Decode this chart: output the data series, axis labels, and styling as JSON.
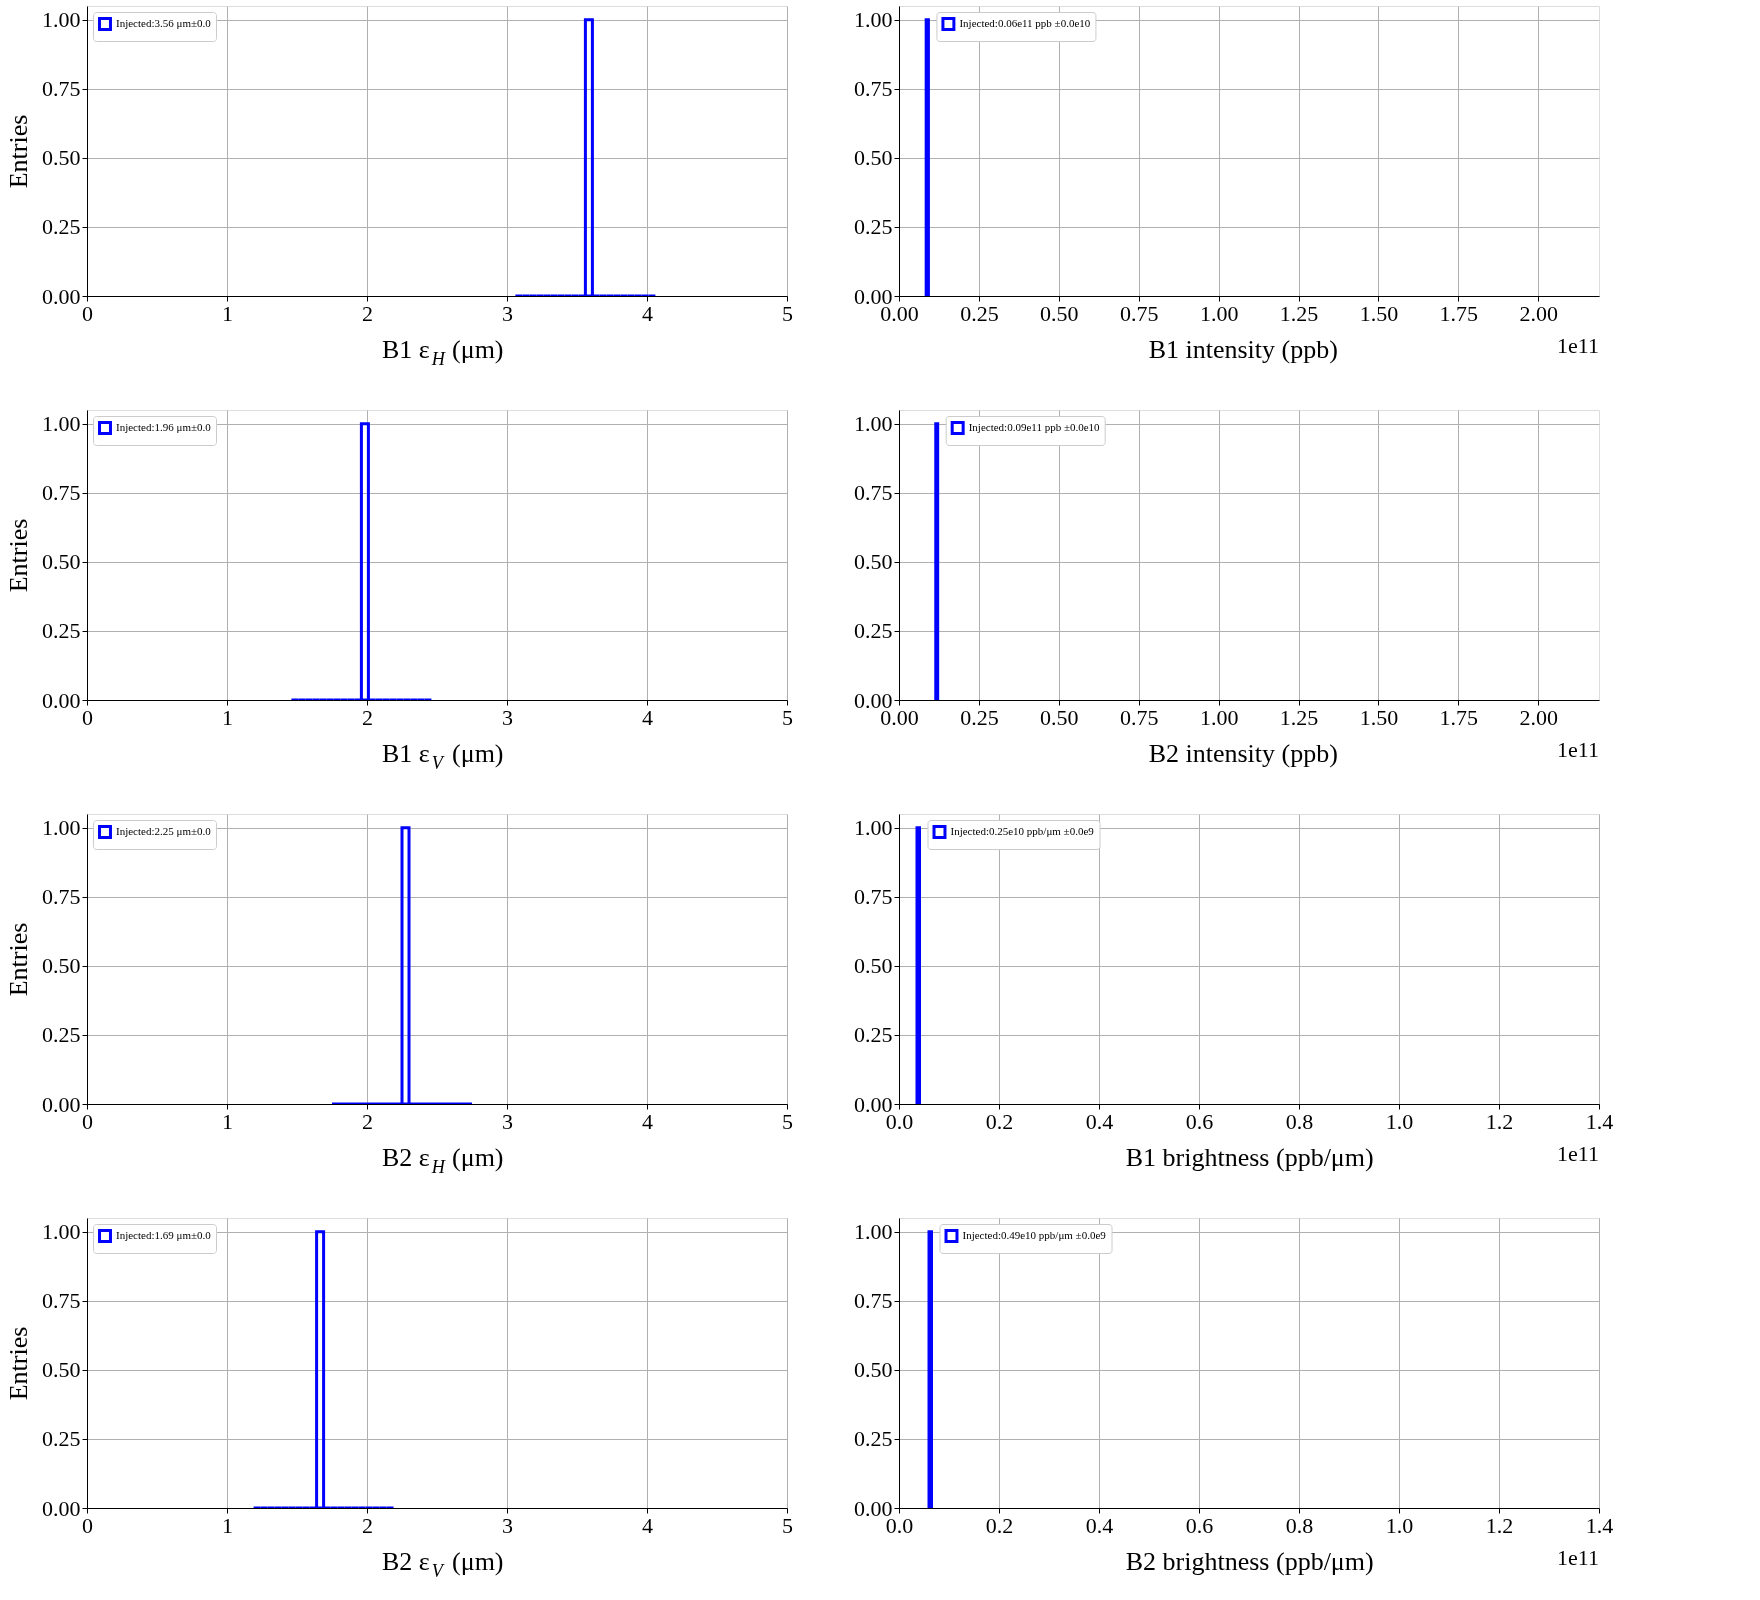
{
  "chart_data": [
    {
      "type": "histogram",
      "xlabel": "B1 ε$_{H}$ (μm)",
      "ylabel": "Entries",
      "bins": [
        3.06,
        3.11,
        3.16,
        3.21,
        3.26,
        3.31,
        3.36,
        3.41,
        3.46,
        3.51,
        3.56,
        3.61,
        3.66,
        3.71,
        3.76,
        3.81,
        3.86,
        3.91,
        3.96,
        4.01,
        4.06
      ],
      "series": [
        {
          "name": "Injected:3.56 μm±0.0",
          "color": "#0000ff",
          "values": [
            0,
            0,
            0,
            0,
            0,
            0,
            0,
            0,
            0,
            0,
            1,
            0,
            0,
            0,
            0,
            0,
            0,
            0,
            0,
            0
          ]
        }
      ],
      "xlim": [
        0,
        5
      ],
      "xticks": [
        0,
        1,
        2,
        3,
        4,
        5
      ],
      "ylim": [
        0,
        1.05
      ],
      "yticks": [
        {
          "value": 0,
          "label": "0.00"
        },
        {
          "value": 0.25,
          "label": "0.25"
        },
        {
          "value": 0.5,
          "label": "0.50"
        },
        {
          "value": 0.75,
          "label": "0.75"
        },
        {
          "value": 1,
          "label": "1.00"
        }
      ],
      "grid": true,
      "legend": "top left"
    },
    {
      "type": "histogram",
      "xlabel": "B1 intensity (ppb)",
      "bins": [
        0.085,
        0.092
      ],
      "series": [
        {
          "name": "Injected:0.06e11 ppb ±0.0e10",
          "color": "#0000ff",
          "values": [
            1
          ]
        }
      ],
      "xlim": [
        0,
        2.19
      ],
      "xticks": [
        {
          "value": 0,
          "label": "0.00"
        },
        {
          "value": 0.25,
          "label": "0.25"
        },
        {
          "value": 0.5,
          "label": "0.50"
        },
        {
          "value": 0.75,
          "label": "0.75"
        },
        {
          "value": 1,
          "label": "1.00"
        },
        {
          "value": 1.25,
          "label": "1.25"
        },
        {
          "value": 1.5,
          "label": "1.50"
        },
        {
          "value": 1.75,
          "label": "1.75"
        },
        {
          "value": 2,
          "label": "2.00"
        }
      ],
      "ylim": [
        0,
        1.05
      ],
      "yticks": [
        {
          "value": 0,
          "label": "0.00"
        },
        {
          "value": 0.25,
          "label": "0.25"
        },
        {
          "value": 0.5,
          "label": "0.50"
        },
        {
          "value": 0.75,
          "label": "0.75"
        },
        {
          "value": 1,
          "label": "1.00"
        }
      ],
      "grid": true,
      "legend": "top left",
      "annotations": [
        "1e11"
      ]
    },
    {
      "type": "histogram",
      "xlabel": "B1 ε$_{V}$ (μm)",
      "ylabel": "Entries",
      "bins": [
        1.46,
        1.51,
        1.56,
        1.61,
        1.66,
        1.71,
        1.76,
        1.81,
        1.86,
        1.91,
        1.96,
        2.01,
        2.06,
        2.11,
        2.16,
        2.21,
        2.26,
        2.31,
        2.36,
        2.41,
        2.46
      ],
      "series": [
        {
          "name": "Injected:1.96 μm±0.0",
          "color": "#0000ff",
          "values": [
            0,
            0,
            0,
            0,
            0,
            0,
            0,
            0,
            0,
            0,
            1,
            0,
            0,
            0,
            0,
            0,
            0,
            0,
            0,
            0
          ]
        }
      ],
      "xlim": [
        0,
        5
      ],
      "xticks": [
        0,
        1,
        2,
        3,
        4,
        5
      ],
      "ylim": [
        0,
        1.05
      ],
      "yticks": [
        {
          "value": 0,
          "label": "0.00"
        },
        {
          "value": 0.25,
          "label": "0.25"
        },
        {
          "value": 0.5,
          "label": "0.50"
        },
        {
          "value": 0.75,
          "label": "0.75"
        },
        {
          "value": 1,
          "label": "1.00"
        }
      ],
      "grid": true,
      "legend": "top left"
    },
    {
      "type": "histogram",
      "xlabel": "B2 intensity (ppb)",
      "bins": [
        0.115,
        0.121
      ],
      "series": [
        {
          "name": "Injected:0.09e11 ppb ±0.0e10",
          "color": "#0000ff",
          "values": [
            1
          ]
        }
      ],
      "xlim": [
        0,
        2.19
      ],
      "xticks": [
        {
          "value": 0,
          "label": "0.00"
        },
        {
          "value": 0.25,
          "label": "0.25"
        },
        {
          "value": 0.5,
          "label": "0.50"
        },
        {
          "value": 0.75,
          "label": "0.75"
        },
        {
          "value": 1,
          "label": "1.00"
        },
        {
          "value": 1.25,
          "label": "1.25"
        },
        {
          "value": 1.5,
          "label": "1.50"
        },
        {
          "value": 1.75,
          "label": "1.75"
        },
        {
          "value": 2,
          "label": "2.00"
        }
      ],
      "ylim": [
        0,
        1.05
      ],
      "yticks": [
        {
          "value": 0,
          "label": "0.00"
        },
        {
          "value": 0.25,
          "label": "0.25"
        },
        {
          "value": 0.5,
          "label": "0.50"
        },
        {
          "value": 0.75,
          "label": "0.75"
        },
        {
          "value": 1,
          "label": "1.00"
        }
      ],
      "grid": true,
      "legend": "top left",
      "annotations": [
        "1e11"
      ]
    },
    {
      "type": "histogram",
      "xlabel": "B2 ε$_{H}$ (μm)",
      "ylabel": "Entries",
      "bins": [
        1.75,
        1.8,
        1.85,
        1.9,
        1.95,
        2.0,
        2.05,
        2.1,
        2.15,
        2.2,
        2.25,
        2.3,
        2.35,
        2.4,
        2.45,
        2.5,
        2.55,
        2.6,
        2.65,
        2.7,
        2.75
      ],
      "series": [
        {
          "name": "Injected:2.25 μm±0.0",
          "color": "#0000ff",
          "values": [
            0,
            0,
            0,
            0,
            0,
            0,
            0,
            0,
            0,
            0,
            1,
            0,
            0,
            0,
            0,
            0,
            0,
            0,
            0,
            0
          ]
        }
      ],
      "xlim": [
        0,
        5
      ],
      "xticks": [
        0,
        1,
        2,
        3,
        4,
        5
      ],
      "ylim": [
        0,
        1.05
      ],
      "yticks": [
        {
          "value": 0,
          "label": "0.00"
        },
        {
          "value": 0.25,
          "label": "0.25"
        },
        {
          "value": 0.5,
          "label": "0.50"
        },
        {
          "value": 0.75,
          "label": "0.75"
        },
        {
          "value": 1,
          "label": "1.00"
        }
      ],
      "grid": true,
      "legend": "top left"
    },
    {
      "type": "histogram",
      "xlabel": "B1 brightness (ppb/μm)",
      "bins": [
        0.036,
        0.041
      ],
      "series": [
        {
          "name": "Injected:0.25e10 ppb/μm ±0.0e9",
          "color": "#0000ff",
          "values": [
            1
          ]
        }
      ],
      "xlim": [
        0,
        1.4
      ],
      "xticks": [
        {
          "value": 0,
          "label": "0.0"
        },
        0.2,
        0.4,
        0.6,
        0.8,
        {
          "value": 1,
          "label": "1.0"
        },
        1.2,
        1.4
      ],
      "ylim": [
        0,
        1.05
      ],
      "yticks": [
        {
          "value": 0,
          "label": "0.00"
        },
        {
          "value": 0.25,
          "label": "0.25"
        },
        {
          "value": 0.5,
          "label": "0.50"
        },
        {
          "value": 0.75,
          "label": "0.75"
        },
        {
          "value": 1,
          "label": "1.00"
        }
      ],
      "grid": true,
      "legend": "top left",
      "annotations": [
        "1e11"
      ]
    },
    {
      "type": "histogram",
      "xlabel": "B2 ε$_{V}$ (μm)",
      "ylabel": "Entries",
      "bins": [
        1.19,
        1.24,
        1.29,
        1.34,
        1.39,
        1.44,
        1.49,
        1.54,
        1.59,
        1.64,
        1.69,
        1.74,
        1.79,
        1.84,
        1.89,
        1.94,
        1.99,
        2.04,
        2.09,
        2.14,
        2.19
      ],
      "series": [
        {
          "name": "Injected:1.69 μm±0.0",
          "color": "#0000ff",
          "values": [
            0,
            0,
            0,
            0,
            0,
            0,
            0,
            0,
            0,
            1,
            0,
            0,
            0,
            0,
            0,
            0,
            0,
            0,
            0,
            0
          ]
        }
      ],
      "xlim": [
        0,
        5
      ],
      "xticks": [
        0,
        1,
        2,
        3,
        4,
        5
      ],
      "ylim": [
        0,
        1.05
      ],
      "yticks": [
        {
          "value": 0,
          "label": "0.00"
        },
        {
          "value": 0.25,
          "label": "0.25"
        },
        {
          "value": 0.5,
          "label": "0.50"
        },
        {
          "value": 0.75,
          "label": "0.75"
        },
        {
          "value": 1,
          "label": "1.00"
        }
      ],
      "grid": true,
      "legend": "top left"
    },
    {
      "type": "histogram",
      "xlabel": "B2 brightness (ppb/μm)",
      "bins": [
        0.06,
        0.065
      ],
      "series": [
        {
          "name": "Injected:0.49e10 ppb/μm ±0.0e9",
          "color": "#0000ff",
          "values": [
            1
          ]
        }
      ],
      "xlim": [
        0,
        1.4
      ],
      "xticks": [
        {
          "value": 0,
          "label": "0.0"
        },
        0.2,
        0.4,
        0.6,
        0.8,
        {
          "value": 1,
          "label": "1.0"
        },
        1.2,
        1.4
      ],
      "ylim": [
        0,
        1.05
      ],
      "yticks": [
        {
          "value": 0,
          "label": "0.00"
        },
        {
          "value": 0.25,
          "label": "0.25"
        },
        {
          "value": 0.5,
          "label": "0.50"
        },
        {
          "value": 0.75,
          "label": "0.75"
        },
        {
          "value": 1,
          "label": "1.00"
        }
      ],
      "grid": true,
      "legend": "top left",
      "annotations": [
        "1e11"
      ]
    }
  ]
}
